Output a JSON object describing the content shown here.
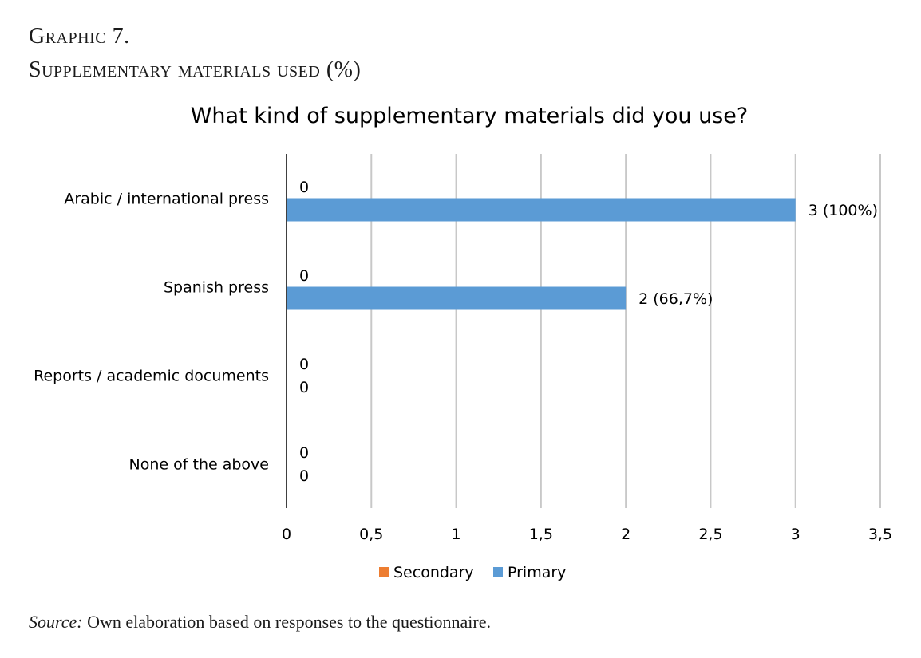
{
  "figure": {
    "graphic_number": "Graphic 7.",
    "graphic_title": "Supplementary materials used (%)",
    "source_label": "Source:",
    "source_text": " Own elaboration based on responses to the questionnaire."
  },
  "chart_data": {
    "type": "bar",
    "orientation": "horizontal",
    "title": "What kind of supplementary materials did you use?",
    "categories": [
      "Arabic / international press",
      "Spanish press",
      "Reports / academic documents",
      "None of the above"
    ],
    "series": [
      {
        "name": "Secondary",
        "values": [
          0,
          0,
          0,
          0
        ],
        "data_labels": [
          "0",
          "0",
          "0",
          "0"
        ],
        "color": "#ED7D31"
      },
      {
        "name": "Primary",
        "values": [
          3,
          2,
          0,
          0
        ],
        "data_labels": [
          "3 (100%)",
          "2 (66,7%)",
          "0",
          "0"
        ],
        "color": "#5B9BD5"
      }
    ],
    "xlim": [
      0,
      3.5
    ],
    "xticks": [
      0,
      0.5,
      1,
      1.5,
      2,
      2.5,
      3,
      3.5
    ],
    "xtick_labels": [
      "0",
      "0,5",
      "1",
      "1,5",
      "2",
      "2,5",
      "3",
      "3,5"
    ],
    "grid": true,
    "legend_position": "bottom",
    "xlabel": "",
    "ylabel": ""
  }
}
